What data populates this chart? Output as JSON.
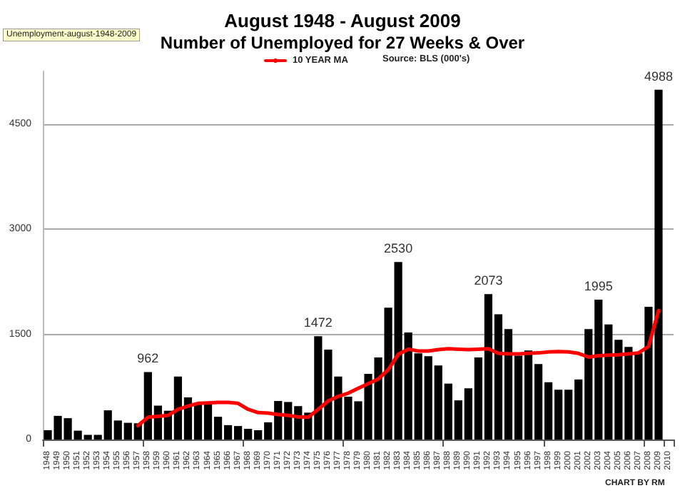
{
  "chart_data": {
    "type": "bar",
    "title": "August 1948 - August 2009",
    "subtitle": "Number of Unemployed for 27 Weeks & Over",
    "categories": [
      "1948",
      "1949",
      "1950",
      "1951",
      "1952",
      "1953",
      "1954",
      "1955",
      "1956",
      "1957",
      "1958",
      "1959",
      "1960",
      "1961",
      "1962",
      "1963",
      "1964",
      "1965",
      "1966",
      "1967",
      "1968",
      "1969",
      "1970",
      "1971",
      "1972",
      "1973",
      "1974",
      "1975",
      "1976",
      "1977",
      "1978",
      "1979",
      "1980",
      "1981",
      "1982",
      "1983",
      "1984",
      "1985",
      "1986",
      "1987",
      "1988",
      "1989",
      "1990",
      "1991",
      "1992",
      "1993",
      "1994",
      "1995",
      "1996",
      "1997",
      "1998",
      "1999",
      "2000",
      "2001",
      "2002",
      "2003",
      "2004",
      "2005",
      "2006",
      "2007",
      "2008",
      "2009",
      "2010"
    ],
    "series": [
      {
        "color": "#000000",
        "values": [
          132,
          337,
          304,
          126,
          66,
          66,
          416,
          271,
          238,
          231,
          962,
          483,
          410,
          899,
          601,
          516,
          516,
          324,
          205,
          192,
          152,
          132,
          245,
          549,
          535,
          476,
          383,
          1472,
          1282,
          899,
          610,
          545,
          936,
          1169,
          1879,
          2530,
          1527,
          1228,
          1189,
          1056,
          797,
          558,
          730,
          1169,
          2073,
          1786,
          1574,
          1195,
          1268,
          1076,
          817,
          710,
          710,
          856,
          1574,
          1995,
          1640,
          1421,
          1321,
          1228,
          1892,
          4988,
          null
        ],
        "value_labels": [
          null,
          null,
          null,
          null,
          null,
          null,
          null,
          null,
          null,
          null,
          "962",
          null,
          null,
          null,
          null,
          null,
          null,
          null,
          null,
          null,
          null,
          null,
          null,
          null,
          null,
          null,
          null,
          "1472",
          null,
          null,
          null,
          null,
          null,
          null,
          null,
          "2530",
          null,
          null,
          null,
          null,
          null,
          null,
          null,
          null,
          "2073",
          null,
          null,
          null,
          null,
          null,
          null,
          null,
          null,
          null,
          null,
          "1995",
          null,
          null,
          null,
          null,
          null,
          "4988",
          null
        ]
      },
      {
        "type": "line",
        "name": "10 YEAR MA",
        "color": "#ff0000",
        "values": [
          null,
          null,
          null,
          null,
          null,
          null,
          null,
          null,
          null,
          198,
          317,
          330,
          344,
          430,
          476,
          516,
          522,
          529,
          529,
          516,
          430,
          383,
          377,
          357,
          344,
          324,
          317,
          430,
          549,
          615,
          661,
          730,
          797,
          863,
          996,
          1215,
          1288,
          1261,
          1261,
          1281,
          1295,
          1288,
          1281,
          1288,
          1295,
          1228,
          1222,
          1222,
          1228,
          1235,
          1248,
          1255,
          1248,
          1228,
          1175,
          1195,
          1202,
          1208,
          1222,
          1235,
          1328,
          1839,
          null
        ]
      }
    ],
    "ylim": [
      0,
      5250
    ],
    "yticks": [
      0,
      1500,
      3000,
      4500
    ],
    "grid": "y",
    "legend": "top",
    "marker": "none",
    "line_style": "solid",
    "annotations": [
      "Unemployment-august-1948-2009",
      "Source: BLS (000's)",
      "CHART BY RM"
    ]
  }
}
